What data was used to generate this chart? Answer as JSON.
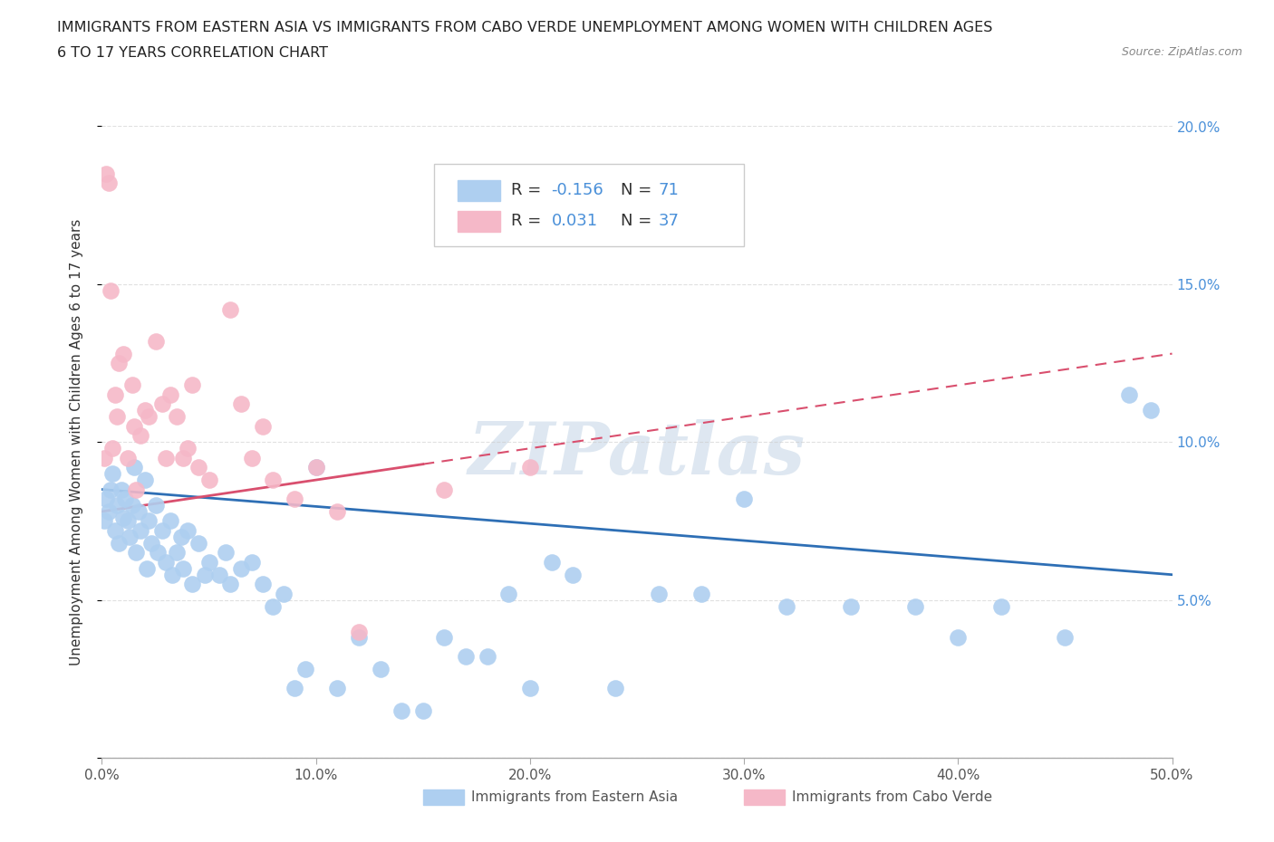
{
  "title_line1": "IMMIGRANTS FROM EASTERN ASIA VS IMMIGRANTS FROM CABO VERDE UNEMPLOYMENT AMONG WOMEN WITH CHILDREN AGES",
  "title_line2": "6 TO 17 YEARS CORRELATION CHART",
  "source": "Source: ZipAtlas.com",
  "ylabel": "Unemployment Among Women with Children Ages 6 to 17 years",
  "xlim": [
    0,
    0.5
  ],
  "ylim": [
    0,
    0.2
  ],
  "xticks": [
    0.0,
    0.1,
    0.2,
    0.3,
    0.4,
    0.5
  ],
  "xticklabels": [
    "0.0%",
    "10.0%",
    "20.0%",
    "30.0%",
    "40.0%",
    "50.0%"
  ],
  "yticks": [
    0.0,
    0.05,
    0.1,
    0.15,
    0.2
  ],
  "yticklabels": [
    "",
    "5.0%",
    "10.0%",
    "15.0%",
    "20.0%"
  ],
  "color_eastern_asia": "#aecff0",
  "color_cabo_verde": "#f5b8c8",
  "line_color_eastern_asia": "#2e6fb5",
  "line_color_cabo_verde": "#d94f6e",
  "legend_R_eastern_asia": "-0.156",
  "legend_N_eastern_asia": "71",
  "legend_R_cabo_verde": "0.031",
  "legend_N_cabo_verde": "37",
  "watermark": "ZIPatlas",
  "ea_trend": [
    0.085,
    0.058
  ],
  "cv_trend": [
    0.078,
    0.128
  ],
  "eastern_asia_x": [
    0.001,
    0.002,
    0.003,
    0.004,
    0.005,
    0.006,
    0.007,
    0.008,
    0.009,
    0.01,
    0.011,
    0.012,
    0.013,
    0.014,
    0.015,
    0.016,
    0.017,
    0.018,
    0.02,
    0.021,
    0.022,
    0.023,
    0.025,
    0.026,
    0.028,
    0.03,
    0.032,
    0.033,
    0.035,
    0.037,
    0.038,
    0.04,
    0.042,
    0.045,
    0.048,
    0.05,
    0.055,
    0.058,
    0.06,
    0.065,
    0.07,
    0.075,
    0.08,
    0.085,
    0.09,
    0.095,
    0.1,
    0.11,
    0.12,
    0.13,
    0.14,
    0.15,
    0.16,
    0.17,
    0.18,
    0.19,
    0.2,
    0.21,
    0.22,
    0.24,
    0.26,
    0.28,
    0.3,
    0.32,
    0.35,
    0.38,
    0.4,
    0.42,
    0.45,
    0.48,
    0.49
  ],
  "eastern_asia_y": [
    0.075,
    0.082,
    0.078,
    0.085,
    0.09,
    0.072,
    0.08,
    0.068,
    0.085,
    0.076,
    0.082,
    0.075,
    0.07,
    0.08,
    0.092,
    0.065,
    0.078,
    0.072,
    0.088,
    0.06,
    0.075,
    0.068,
    0.08,
    0.065,
    0.072,
    0.062,
    0.075,
    0.058,
    0.065,
    0.07,
    0.06,
    0.072,
    0.055,
    0.068,
    0.058,
    0.062,
    0.058,
    0.065,
    0.055,
    0.06,
    0.062,
    0.055,
    0.048,
    0.052,
    0.022,
    0.028,
    0.092,
    0.022,
    0.038,
    0.028,
    0.015,
    0.015,
    0.038,
    0.032,
    0.032,
    0.052,
    0.022,
    0.062,
    0.058,
    0.022,
    0.052,
    0.052,
    0.082,
    0.048,
    0.048,
    0.048,
    0.038,
    0.048,
    0.038,
    0.115,
    0.11
  ],
  "cabo_verde_x": [
    0.001,
    0.002,
    0.003,
    0.004,
    0.005,
    0.006,
    0.007,
    0.008,
    0.01,
    0.012,
    0.014,
    0.015,
    0.016,
    0.018,
    0.02,
    0.022,
    0.025,
    0.028,
    0.03,
    0.032,
    0.035,
    0.038,
    0.04,
    0.042,
    0.045,
    0.05,
    0.06,
    0.065,
    0.07,
    0.075,
    0.08,
    0.09,
    0.1,
    0.11,
    0.12,
    0.16,
    0.2
  ],
  "cabo_verde_y": [
    0.095,
    0.185,
    0.182,
    0.148,
    0.098,
    0.115,
    0.108,
    0.125,
    0.128,
    0.095,
    0.118,
    0.105,
    0.085,
    0.102,
    0.11,
    0.108,
    0.132,
    0.112,
    0.095,
    0.115,
    0.108,
    0.095,
    0.098,
    0.118,
    0.092,
    0.088,
    0.142,
    0.112,
    0.095,
    0.105,
    0.088,
    0.082,
    0.092,
    0.078,
    0.04,
    0.085,
    0.092
  ]
}
